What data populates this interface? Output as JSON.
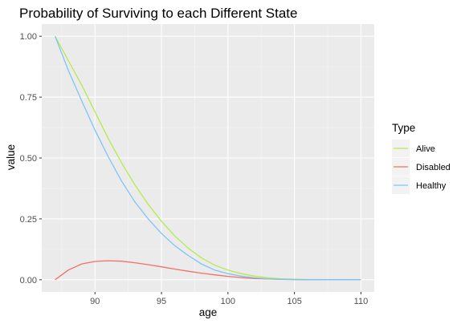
{
  "chart_data": {
    "type": "line",
    "title": "Probability of Surviving to each Different State",
    "xlabel": "age",
    "ylabel": "value",
    "xlim": [
      86.0,
      111.0
    ],
    "ylim": [
      -0.05,
      1.05
    ],
    "x_ticks": [
      90,
      95,
      100,
      105,
      110
    ],
    "y_ticks": [
      0.0,
      0.25,
      0.5,
      0.75,
      1.0
    ],
    "x_tick_labels": [
      "90",
      "95",
      "100",
      "105",
      "110"
    ],
    "y_tick_labels": [
      "0.00",
      "0.25",
      "0.50",
      "0.75",
      "1.00"
    ],
    "x": [
      87,
      88,
      89,
      90,
      91,
      92,
      93,
      94,
      95,
      96,
      97,
      98,
      99,
      100,
      101,
      102,
      103,
      104,
      105,
      106,
      107,
      108,
      109,
      110
    ],
    "series": [
      {
        "name": "Alive",
        "color": "#b8e94e",
        "values": [
          1.0,
          0.9,
          0.8,
          0.69,
          0.58,
          0.48,
          0.39,
          0.31,
          0.24,
          0.18,
          0.13,
          0.09,
          0.06,
          0.04,
          0.025,
          0.015,
          0.008,
          0.004,
          0.002,
          0.001,
          0.0005,
          0.0002,
          0.0001,
          0.0
        ]
      },
      {
        "name": "Disabled",
        "color": "#f07166",
        "values": [
          0.0,
          0.04,
          0.065,
          0.075,
          0.078,
          0.076,
          0.07,
          0.062,
          0.053,
          0.044,
          0.035,
          0.027,
          0.02,
          0.014,
          0.009,
          0.005,
          0.003,
          0.0015,
          0.0007,
          0.0003,
          0.0001,
          0.0,
          0.0,
          0.0
        ]
      },
      {
        "name": "Healthy",
        "color": "#7ec5f7",
        "values": [
          1.0,
          0.86,
          0.735,
          0.615,
          0.505,
          0.405,
          0.32,
          0.25,
          0.19,
          0.14,
          0.1,
          0.065,
          0.04,
          0.025,
          0.015,
          0.008,
          0.004,
          0.002,
          0.001,
          0.0005,
          0.0002,
          0.0001,
          0.0,
          0.0
        ]
      }
    ],
    "grid": true,
    "legend": {
      "title": "Type",
      "position": "right",
      "entries": [
        "Alive",
        "Disabled",
        "Healthy"
      ]
    },
    "panel_background": "#ebebeb"
  }
}
